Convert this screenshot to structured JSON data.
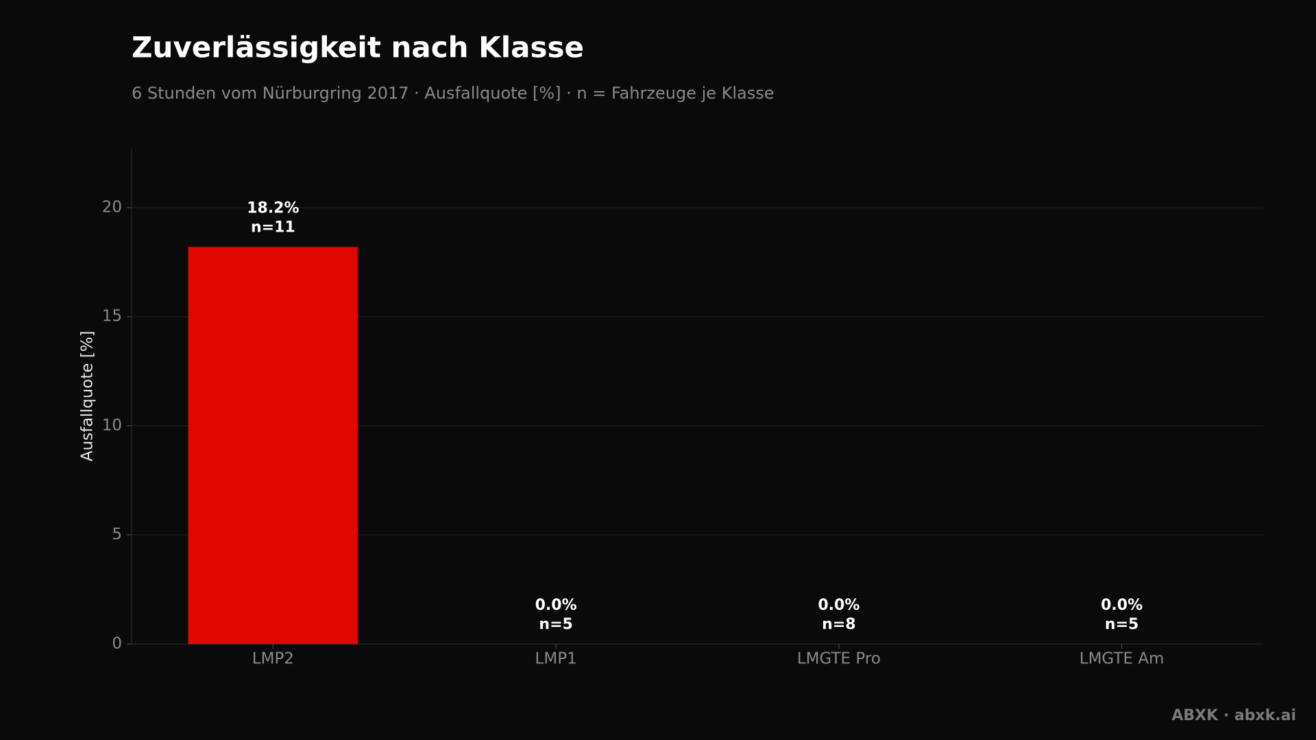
{
  "chart_data": {
    "type": "bar",
    "title": "Zuverlässigkeit nach Klasse",
    "subtitle": "6 Stunden vom Nürburgring 2017 · Ausfallquote [%] · n = Fahrzeuge je Klasse",
    "y_label": "Ausfallquote [%]",
    "categories": [
      "LMP2",
      "LMP1",
      "LMGTE Pro",
      "LMGTE Am"
    ],
    "values": [
      18.2,
      0.0,
      0.0,
      0.0
    ],
    "value_labels": [
      "18.2%",
      "0.0%",
      "0.0%",
      "0.0%"
    ],
    "sample_labels": [
      "n=11",
      "n=5",
      "n=8",
      "n=5"
    ],
    "color": "#e00700",
    "ylim": [
      0,
      22.7
    ],
    "yticks": [
      0,
      5,
      10,
      15,
      20
    ],
    "grid": true,
    "footer": "ABXK · abxk.ai"
  }
}
